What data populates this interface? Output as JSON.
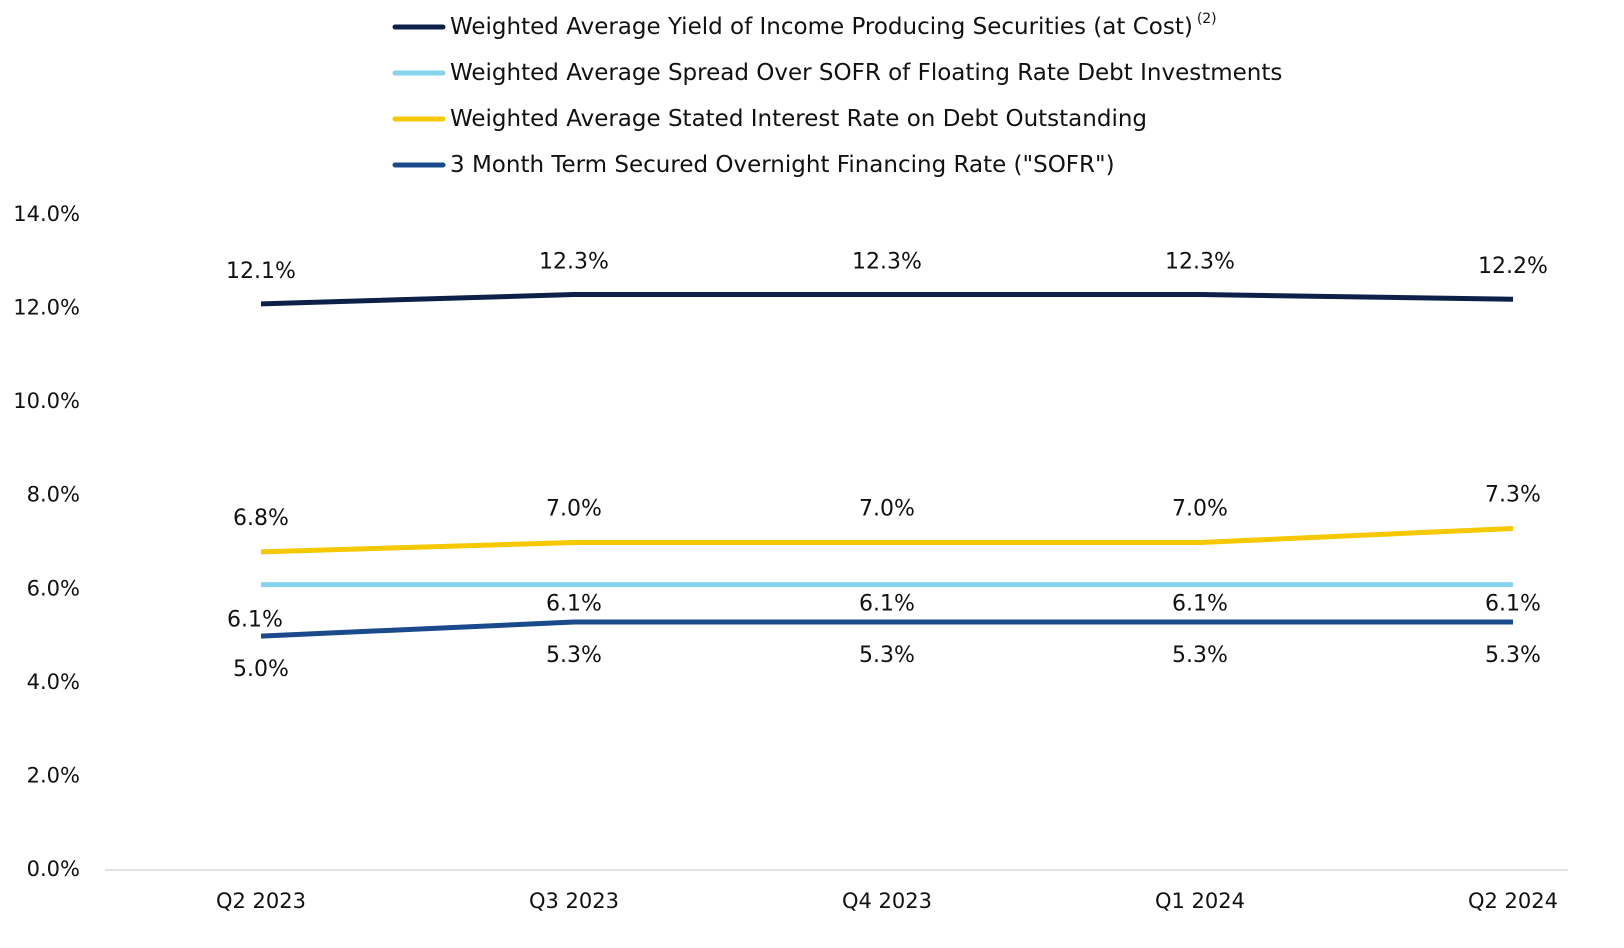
{
  "chart_data": {
    "type": "line",
    "categories": [
      "Q2 2023",
      "Q3 2023",
      "Q4 2023",
      "Q1 2024",
      "Q2 2024"
    ],
    "series": [
      {
        "name": "Weighted Average Yield of Income Producing Securities (at Cost)",
        "name_note": "(2)",
        "color": "#0d2148",
        "values": [
          12.1,
          12.3,
          12.3,
          12.3,
          12.2
        ],
        "value_labels": [
          "12.1%",
          "12.3%",
          "12.3%",
          "12.3%",
          "12.2%"
        ]
      },
      {
        "name": "Weighted Average Spread Over SOFR of Floating Rate Debt Investments",
        "color": "#87d3ec",
        "values": [
          6.1,
          6.1,
          6.1,
          6.1,
          6.1
        ],
        "value_labels": [
          "6.1%",
          "6.1%",
          "6.1%",
          "6.1%",
          "6.1%"
        ]
      },
      {
        "name": "Weighted Average Stated Interest Rate on Debt Outstanding",
        "color": "#f5c800",
        "values": [
          6.8,
          7.0,
          7.0,
          7.0,
          7.3
        ],
        "value_labels": [
          "6.8%",
          "7.0%",
          "7.0%",
          "7.0%",
          "7.3%"
        ]
      },
      {
        "name": "3 Month Term Secured Overnight Financing Rate (\"SOFR\")",
        "color": "#1a4a8c",
        "values": [
          5.0,
          5.3,
          5.3,
          5.3,
          5.3
        ],
        "value_labels": [
          "5.0%",
          "5.3%",
          "5.3%",
          "5.3%",
          "5.3%"
        ]
      }
    ],
    "ylim": [
      0,
      14
    ],
    "yticks": [
      {
        "value": 0,
        "label": "0.0%"
      },
      {
        "value": 2,
        "label": "2.0%"
      },
      {
        "value": 4,
        "label": "4.0%"
      },
      {
        "value": 6,
        "label": "6.0%"
      },
      {
        "value": 8,
        "label": "8.0%"
      },
      {
        "value": 10,
        "label": "10.0%"
      },
      {
        "value": 12,
        "label": "12.0%"
      },
      {
        "value": 14,
        "label": "14.0%"
      }
    ],
    "grid": false,
    "legend": "top"
  }
}
